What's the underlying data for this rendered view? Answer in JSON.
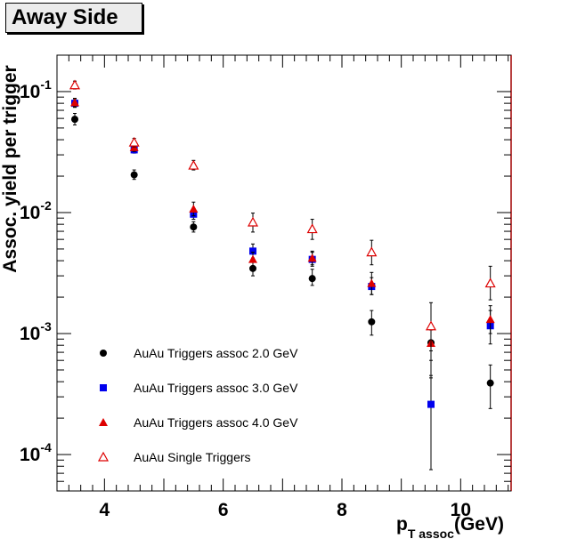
{
  "chart_data": {
    "type": "scatter",
    "title": "Away Side",
    "ylabel": "Assoc. yield per trigger",
    "xlabel": {
      "main": "p",
      "sub": "T assoc",
      "unit": "(GeV)"
    },
    "xlim": [
      3.2,
      10.85
    ],
    "ylim": [
      5e-05,
      0.2
    ],
    "yscale": "log",
    "xticks": [
      4,
      6,
      8,
      10
    ],
    "yticks": [
      {
        "value": 0.1,
        "mantissa": "10",
        "exp": "-1"
      },
      {
        "value": 0.01,
        "mantissa": "10",
        "exp": "-2"
      },
      {
        "value": 0.001,
        "mantissa": "10",
        "exp": "-3"
      },
      {
        "value": 0.0001,
        "mantissa": "10",
        "exp": "-4"
      }
    ],
    "grid": false,
    "legend_position": "bottom-left",
    "series": [
      {
        "name": "AuAu Triggers assoc 2.0 GeV",
        "marker": "circle",
        "color": "#000000",
        "points": [
          {
            "x": 3.5,
            "y": 0.059,
            "lo": 0.053,
            "hi": 0.066
          },
          {
            "x": 4.5,
            "y": 0.0205,
            "lo": 0.0188,
            "hi": 0.0225
          },
          {
            "x": 5.5,
            "y": 0.0076,
            "lo": 0.0069,
            "hi": 0.0084
          },
          {
            "x": 6.5,
            "y": 0.00345,
            "lo": 0.003,
            "hi": 0.004
          },
          {
            "x": 7.5,
            "y": 0.00285,
            "lo": 0.0025,
            "hi": 0.0034
          },
          {
            "x": 8.5,
            "y": 0.00125,
            "lo": 0.00097,
            "hi": 0.00155
          },
          {
            "x": 9.5,
            "y": 0.00084,
            "lo": 0.00043,
            "hi": 0.00115
          },
          {
            "x": 10.5,
            "y": 0.00039,
            "lo": 0.00024,
            "hi": 0.00055
          }
        ]
      },
      {
        "name": "AuAu Triggers assoc 3.0 GeV",
        "marker": "square",
        "color": "#0000ee",
        "points": [
          {
            "x": 3.5,
            "y": 0.08,
            "lo": 0.074,
            "hi": 0.087
          },
          {
            "x": 4.5,
            "y": 0.033,
            "lo": 0.031,
            "hi": 0.036
          },
          {
            "x": 5.5,
            "y": 0.0097,
            "lo": 0.0088,
            "hi": 0.0107
          },
          {
            "x": 6.5,
            "y": 0.0048,
            "lo": 0.0042,
            "hi": 0.0055
          },
          {
            "x": 7.5,
            "y": 0.0041,
            "lo": 0.0036,
            "hi": 0.0047
          },
          {
            "x": 8.5,
            "y": 0.00245,
            "lo": 0.0021,
            "hi": 0.0029
          },
          {
            "x": 9.5,
            "y": 0.00026,
            "lo": 7.5e-05,
            "hi": 0.00045
          },
          {
            "x": 10.5,
            "y": 0.00116,
            "lo": 0.00082,
            "hi": 0.00155
          }
        ]
      },
      {
        "name": "AuAu Triggers assoc 4.0 GeV",
        "marker": "triangle",
        "color": "#dd0000",
        "points": [
          {
            "x": 3.5,
            "y": 0.081,
            "lo": 0.075,
            "hi": 0.088
          },
          {
            "x": 4.5,
            "y": 0.0345,
            "lo": 0.032,
            "hi": 0.037
          },
          {
            "x": 5.5,
            "y": 0.0107,
            "lo": 0.0094,
            "hi": 0.0122
          },
          {
            "x": 6.5,
            "y": 0.0041,
            "lo": 0.0036,
            "hi": 0.0047
          },
          {
            "x": 7.5,
            "y": 0.0042,
            "lo": 0.0037,
            "hi": 0.0048
          },
          {
            "x": 8.5,
            "y": 0.0026,
            "lo": 0.0021,
            "hi": 0.0032
          },
          {
            "x": 9.5,
            "y": 0.00083,
            "lo": 0.0006,
            "hi": 0.00107
          },
          {
            "x": 10.5,
            "y": 0.00131,
            "lo": 0.001,
            "hi": 0.0017
          }
        ]
      },
      {
        "name": "AuAu Single Triggers",
        "marker": "triangle-open",
        "color": "#dd0000",
        "points": [
          {
            "x": 3.5,
            "y": 0.113,
            "lo": 0.105,
            "hi": 0.122
          },
          {
            "x": 4.5,
            "y": 0.038,
            "lo": 0.035,
            "hi": 0.041
          },
          {
            "x": 5.5,
            "y": 0.0245,
            "lo": 0.0225,
            "hi": 0.027
          },
          {
            "x": 6.5,
            "y": 0.0083,
            "lo": 0.0069,
            "hi": 0.0099
          },
          {
            "x": 7.5,
            "y": 0.0073,
            "lo": 0.006,
            "hi": 0.0088
          },
          {
            "x": 8.5,
            "y": 0.0047,
            "lo": 0.0037,
            "hi": 0.0059
          },
          {
            "x": 9.5,
            "y": 0.00115,
            "lo": 0.00072,
            "hi": 0.0018
          },
          {
            "x": 10.5,
            "y": 0.0026,
            "lo": 0.0019,
            "hi": 0.0036
          }
        ]
      }
    ]
  }
}
